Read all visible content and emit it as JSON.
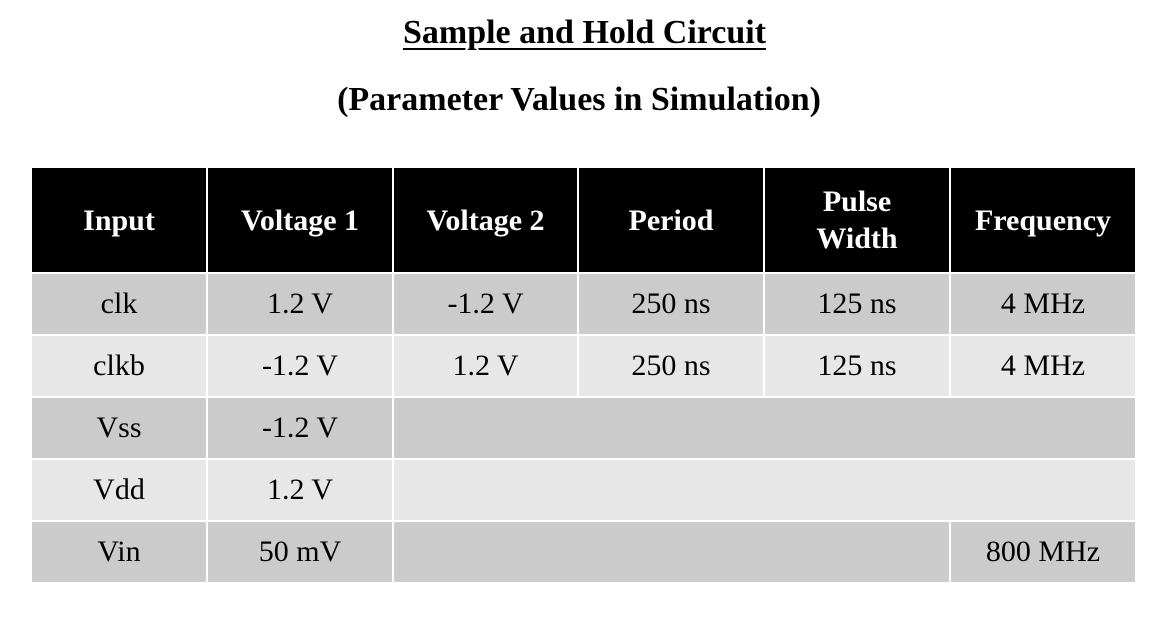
{
  "title": "Sample and Hold Circuit",
  "subtitle": "(Parameter Values in Simulation)",
  "table": {
    "headers": [
      "Input",
      "Voltage 1",
      "Voltage 2",
      "Period",
      "Pulse Width",
      "Frequency"
    ],
    "rows": [
      {
        "input": "clk",
        "voltage1": "1.2 V",
        "voltage2": "-1.2 V",
        "period": "250 ns",
        "pulse_width": "125 ns",
        "frequency": "4 MHz"
      },
      {
        "input": "clkb",
        "voltage1": "-1.2 V",
        "voltage2": "1.2 V",
        "period": "250 ns",
        "pulse_width": "125 ns",
        "frequency": "4 MHz"
      },
      {
        "input": "Vss",
        "voltage1": "-1.2 V"
      },
      {
        "input": "Vdd",
        "voltage1": "1.2 V"
      },
      {
        "input": "Vin",
        "voltage1": "50 mV",
        "frequency": "800 MHz"
      }
    ]
  },
  "colors": {
    "header_bg": "#000000",
    "header_text": "#ffffff",
    "row_dark": "#cbcbcb",
    "row_light": "#e7e7e7"
  }
}
